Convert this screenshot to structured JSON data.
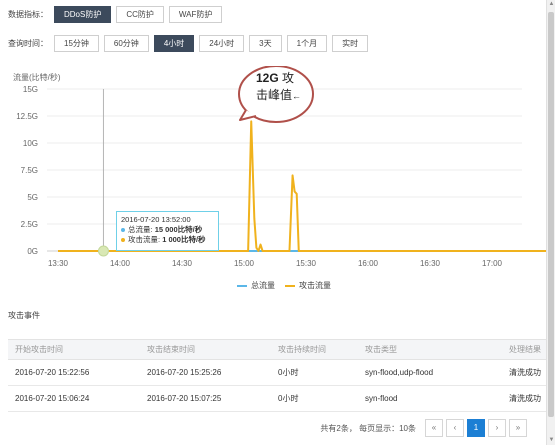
{
  "metric_row": {
    "label": "数据指标：",
    "options": [
      "DDoS防护",
      "CC防护",
      "WAF防护"
    ],
    "active_index": 0
  },
  "time_row": {
    "label": "查询时间：",
    "options": [
      "15分钟",
      "60分钟",
      "4小时",
      "24小时",
      "3天",
      "1个月",
      "实时"
    ],
    "active_index": 2
  },
  "chart": {
    "y_axis_title": "流量(比特/秒)",
    "callout_bold": "12G",
    "callout_rest_1": " 攻",
    "callout_line2": "击峰值",
    "tooltip": {
      "time": "2016-07-20 13:52:00",
      "total_label": "总流量:",
      "total_value": "15 000比特/秒",
      "attack_label": "攻击流量:",
      "attack_value": "1 000比特/秒"
    },
    "legend": {
      "total": "总流量",
      "attack": "攻击流量"
    }
  },
  "chart_data": {
    "type": "line",
    "ylabel": "流量(比特/秒)",
    "yticks": [
      "0G",
      "2.5G",
      "5G",
      "7.5G",
      "10G",
      "12.5G",
      "15G"
    ],
    "ylim": [
      0,
      15
    ],
    "xticks": [
      "13:30",
      "14:00",
      "14:30",
      "15:00",
      "15:30",
      "16:00",
      "16:30",
      "17:00"
    ],
    "xlim_minutes": [
      0,
      250
    ],
    "grid": "horizontal",
    "legend_position": "bottom",
    "series": [
      {
        "name": "总流量",
        "color": "#5bb7e8",
        "points": [
          [
            0,
            0
          ],
          [
            250,
            0
          ]
        ]
      },
      {
        "name": "攻击流量",
        "color": "#f0b21d",
        "points": [
          [
            0,
            0
          ],
          [
            92,
            0
          ],
          [
            93.5,
            12
          ],
          [
            95,
            3
          ],
          [
            96,
            0.3
          ],
          [
            97,
            0
          ],
          [
            98,
            0.6
          ],
          [
            99,
            0
          ],
          [
            112,
            0
          ],
          [
            113.5,
            7
          ],
          [
            114.5,
            5.5
          ],
          [
            115.5,
            5.3
          ],
          [
            116.5,
            0
          ],
          [
            250,
            0
          ]
        ]
      }
    ],
    "hover_marker": {
      "x": 22,
      "y": 0
    }
  },
  "events": {
    "title": "攻击事件",
    "columns": [
      "开始攻击时间",
      "攻击结束时间",
      "攻击持续时间",
      "攻击类型",
      "处理结果"
    ],
    "rows": [
      [
        "2016-07-20 15:22:56",
        "2016-07-20 15:25:26",
        "0小时",
        "syn-flood,udp-flood",
        "清洗成功"
      ],
      [
        "2016-07-20 15:06:24",
        "2016-07-20 15:07:25",
        "0小时",
        "syn-flood",
        "清洗成功"
      ]
    ],
    "status_color": "#2fa84f"
  },
  "pagination": {
    "info": "共有2条， 每页显示：10条",
    "first": "«",
    "prev": "‹",
    "current": "1",
    "next": "›",
    "last": "»"
  }
}
